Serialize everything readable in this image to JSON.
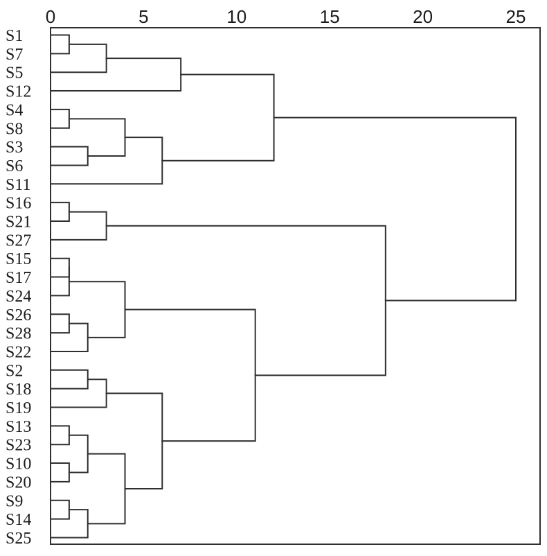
{
  "chart_data": {
    "type": "dendrogram",
    "orientation": "horizontal-leaves-left-root-right",
    "axis": {
      "position": "top",
      "ticks": [
        0,
        5,
        10,
        15,
        20,
        25
      ],
      "min": 0,
      "max": 26.3,
      "grid": false
    },
    "leaves": [
      "S1",
      "S7",
      "S5",
      "S12",
      "S4",
      "S8",
      "S3",
      "S6",
      "S11",
      "S16",
      "S21",
      "S27",
      "S15",
      "S17",
      "S24",
      "S26",
      "S28",
      "S22",
      "S2",
      "S18",
      "S19",
      "S13",
      "S23",
      "S10",
      "S20",
      "S9",
      "S14",
      "S25"
    ],
    "merges": [
      {
        "a": "S1",
        "b": "S7",
        "d": 1
      },
      {
        "a": 0,
        "b": "S5",
        "d": 3
      },
      {
        "a": 1,
        "b": "S12",
        "d": 7
      },
      {
        "a": "S4",
        "b": "S8",
        "d": 1
      },
      {
        "a": "S3",
        "b": "S6",
        "d": 2
      },
      {
        "a": 3,
        "b": 4,
        "d": 4
      },
      {
        "a": 5,
        "b": "S11",
        "d": 6
      },
      {
        "a": 2,
        "b": 6,
        "d": 12
      },
      {
        "a": "S16",
        "b": "S21",
        "d": 1
      },
      {
        "a": 8,
        "b": "S27",
        "d": 3
      },
      {
        "a": "S15",
        "b": "S17",
        "d": 1
      },
      {
        "a": 10,
        "b": "S24",
        "d": 1
      },
      {
        "a": "S26",
        "b": "S28",
        "d": 1
      },
      {
        "a": 12,
        "b": "S22",
        "d": 2
      },
      {
        "a": 11,
        "b": 13,
        "d": 4
      },
      {
        "a": "S2",
        "b": "S18",
        "d": 2
      },
      {
        "a": 15,
        "b": "S19",
        "d": 3
      },
      {
        "a": "S13",
        "b": "S23",
        "d": 1
      },
      {
        "a": "S10",
        "b": "S20",
        "d": 1
      },
      {
        "a": 17,
        "b": 18,
        "d": 2
      },
      {
        "a": "S9",
        "b": "S14",
        "d": 1
      },
      {
        "a": 20,
        "b": "S25",
        "d": 2
      },
      {
        "a": 19,
        "b": 21,
        "d": 4
      },
      {
        "a": 16,
        "b": 22,
        "d": 6
      },
      {
        "a": 14,
        "b": 23,
        "d": 11
      },
      {
        "a": 9,
        "b": 24,
        "d": 18
      },
      {
        "a": 7,
        "b": 25,
        "d": 25
      }
    ],
    "colors": {
      "line": "#2f2f2f",
      "text": "#1c1c1c",
      "background": "#ffffff"
    }
  }
}
